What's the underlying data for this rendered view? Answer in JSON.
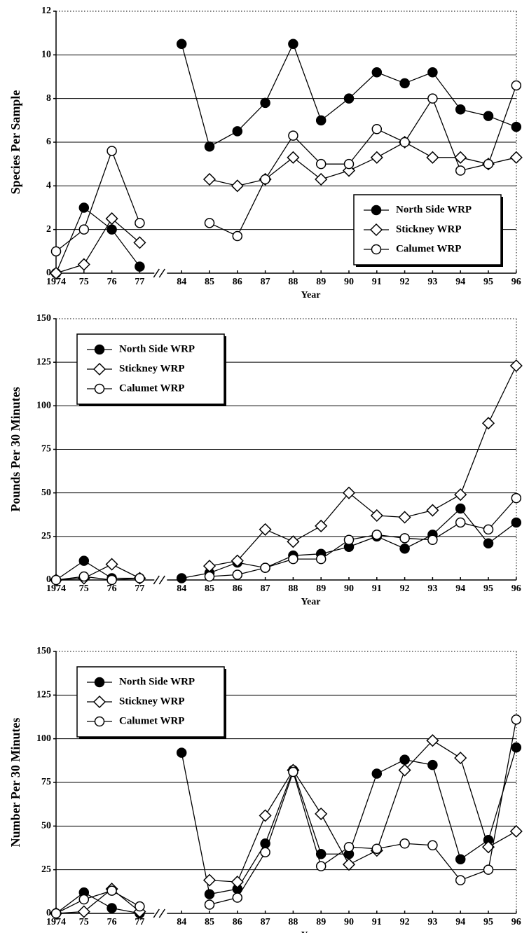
{
  "chart_data": [
    {
      "type": "line",
      "y_label": "Species Per Sample",
      "x_label": "Year",
      "categories": [
        "1974",
        "75",
        "76",
        "77",
        "84",
        "85",
        "86",
        "87",
        "88",
        "89",
        "90",
        "91",
        "92",
        "93",
        "94",
        "95",
        "96"
      ],
      "x_break_after": "77",
      "ylim": [
        0,
        12
      ],
      "yticks": [
        0,
        2,
        4,
        6,
        8,
        10,
        12
      ],
      "grid": true,
      "legend": "lower right",
      "series": [
        {
          "name": "North Side WRP",
          "color": "#000000",
          "marker": "filled-circle",
          "values": [
            0,
            3,
            2,
            0.3,
            10.5,
            5.8,
            6.5,
            7.8,
            10.5,
            7.0,
            8.0,
            9.2,
            8.7,
            9.2,
            7.5,
            7.2,
            6.7
          ]
        },
        {
          "name": "Stickney WRP",
          "color": "#000000",
          "marker": "open-diamond",
          "values": [
            0,
            0.4,
            2.5,
            1.4,
            null,
            4.3,
            4.0,
            4.3,
            5.3,
            4.3,
            4.7,
            5.3,
            6.0,
            5.3,
            5.3,
            5.0,
            5.3
          ]
        },
        {
          "name": "Calumet WRP",
          "color": "#000000",
          "marker": "open-circle",
          "values": [
            1,
            2,
            5.6,
            2.3,
            null,
            2.3,
            1.7,
            4.3,
            6.3,
            5.0,
            5.0,
            6.6,
            6.0,
            8.0,
            4.7,
            5.0,
            8.6
          ]
        }
      ]
    },
    {
      "type": "line",
      "y_label": "Pounds Per 30 Minutes",
      "x_label": "Year",
      "categories": [
        "1974",
        "75",
        "76",
        "77",
        "84",
        "85",
        "86",
        "87",
        "88",
        "89",
        "90",
        "91",
        "92",
        "93",
        "94",
        "95",
        "96"
      ],
      "x_break_after": "77",
      "ylim": [
        0,
        150
      ],
      "yticks": [
        0,
        25,
        50,
        75,
        100,
        125,
        150
      ],
      "grid": true,
      "legend": "upper left",
      "series": [
        {
          "name": "North Side WRP",
          "color": "#000000",
          "marker": "filled-circle",
          "values": [
            0,
            11,
            1,
            1,
            1,
            4,
            10,
            7,
            14,
            15,
            19,
            25,
            18,
            26,
            41,
            21,
            33
          ]
        },
        {
          "name": "Stickney WRP",
          "color": "#000000",
          "marker": "open-diamond",
          "values": [
            0,
            1,
            9,
            1,
            null,
            8,
            11,
            29,
            22,
            31,
            50,
            37,
            36,
            40,
            49,
            90,
            123
          ]
        },
        {
          "name": "Calumet WRP",
          "color": "#000000",
          "marker": "open-circle",
          "values": [
            0,
            2,
            0,
            1,
            null,
            2,
            3,
            7,
            12,
            12,
            23,
            26,
            24,
            23,
            33,
            29,
            47
          ]
        }
      ]
    },
    {
      "type": "line",
      "y_label": "Number Per 30 Minutes",
      "x_label": "Year",
      "categories": [
        "1974",
        "75",
        "76",
        "77",
        "84",
        "85",
        "86",
        "87",
        "88",
        "89",
        "90",
        "91",
        "92",
        "93",
        "94",
        "95",
        "96"
      ],
      "x_break_after": "77",
      "ylim": [
        0,
        150
      ],
      "yticks": [
        0,
        25,
        50,
        75,
        100,
        125,
        150
      ],
      "grid": true,
      "legend": "upper left",
      "series": [
        {
          "name": "North Side WRP",
          "color": "#000000",
          "marker": "filled-circle",
          "values": [
            0,
            12,
            3,
            0,
            92,
            11,
            14,
            40,
            82,
            34,
            34,
            80,
            88,
            85,
            31,
            42,
            95
          ]
        },
        {
          "name": "Stickney WRP",
          "color": "#000000",
          "marker": "open-diamond",
          "values": [
            0,
            1,
            14,
            1,
            null,
            19,
            18,
            56,
            82,
            57,
            28,
            36,
            82,
            99,
            89,
            38,
            47
          ]
        },
        {
          "name": "Calumet WRP",
          "color": "#000000",
          "marker": "open-circle",
          "values": [
            0,
            8,
            13,
            4,
            null,
            5,
            9,
            35,
            81,
            27,
            38,
            37,
            40,
            39,
            19,
            25,
            111
          ]
        }
      ]
    }
  ]
}
